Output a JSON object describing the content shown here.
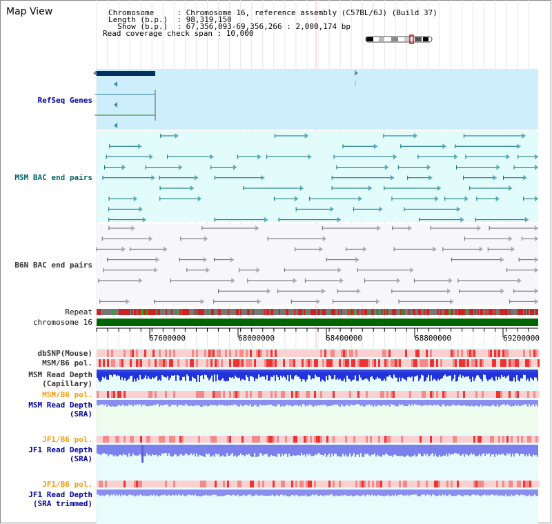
{
  "header": {
    "view_title": "Map View",
    "info_lines": [
      "Chromosome     : Chromosome 16, reference assembly (C57BL/6J) (Build 37)",
      "Length (b.p.)  : 98,319,150",
      "  Show (b.p.)  : 67,356,093-69,356,266 : 2,000,174 bp",
      "Read coverage check span : 10,000"
    ]
  },
  "tracks": {
    "refseq": "RefSeq Genes",
    "msm_bac": "MSM BAC end pairs",
    "b6n_bac": "B6N BAC end pairs",
    "repeat": "Repeat",
    "chromosome": "chromosome 16",
    "dbsnp": "dbSNP(Mouse)",
    "msm_b6_pol": "MSM/B6 pol.",
    "msm_depth_cap_1": "MSM Read Depth",
    "msm_depth_cap_2": "(Capillary)",
    "msm_b6_pol_2": "MSM/B6 pol.",
    "msm_depth_sra_1": "MSM Read Depth",
    "msm_depth_sra_2": "(SRA)",
    "jf1_pol_1": "JF1/B6 pol.",
    "jf1_depth_sra_1": "JF1 Read Depth",
    "jf1_depth_sra_2": "(SRA)",
    "jf1_pol_2": "JF1/B6 pol.",
    "jf1_depth_trim_1": "JF1 Read Depth",
    "jf1_depth_trim_2": "(SRA trimmed)"
  },
  "axis": {
    "ticks": [
      "67600000",
      "68000000",
      "68400000",
      "68800000",
      "69200000"
    ]
  },
  "colors": {
    "refseq_label": "#000099",
    "msm_label": "#006666",
    "b6n_label": "#333333",
    "orange_label": "#ff9900",
    "blue_label": "#000099",
    "chromosome_bar": "#006600"
  }
}
